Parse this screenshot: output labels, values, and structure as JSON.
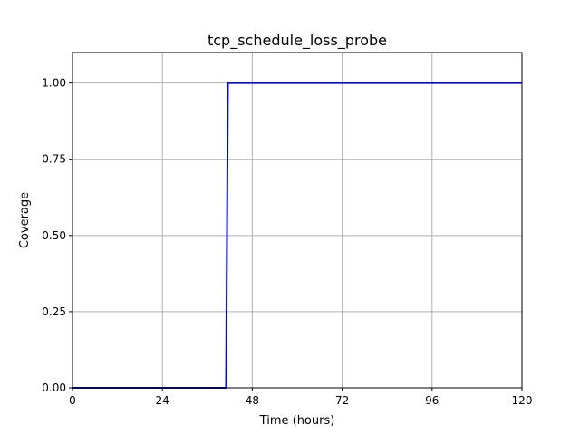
{
  "chart_data": {
    "type": "line",
    "title": "tcp_schedule_loss_probe",
    "xlabel": "Time (hours)",
    "ylabel": "Coverage",
    "xlim": [
      0,
      120
    ],
    "ylim": [
      0,
      1.1
    ],
    "xticks": [
      0,
      24,
      48,
      72,
      96,
      120
    ],
    "xtick_labels": [
      "0",
      "24",
      "48",
      "72",
      "96",
      "120"
    ],
    "yticks": [
      0,
      0.25,
      0.5,
      0.75,
      1.0
    ],
    "ytick_labels": [
      "0.00",
      "0.25",
      "0.50",
      "0.75",
      "1.00"
    ],
    "grid": true,
    "series": [
      {
        "color": "#0000ff",
        "x": [
          0,
          41,
          41.5,
          120
        ],
        "y": [
          0,
          0,
          1,
          1
        ]
      }
    ]
  }
}
